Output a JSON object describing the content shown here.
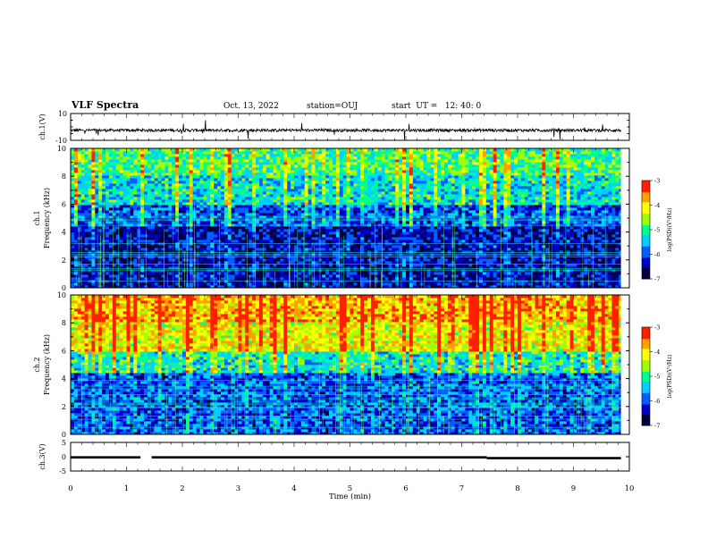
{
  "header": {
    "title": "VLF Spectra",
    "date": "Oct. 13, 2022",
    "station": "station=OUJ",
    "start": "start  UT =   12: 40: 0"
  },
  "chart_data": [
    {
      "type": "line",
      "panel": "ch1-waveform",
      "ylabel": "ch.1(V)",
      "ylim": [
        -10,
        10
      ],
      "yticks": [
        "10",
        "-10"
      ],
      "xlim": [
        0,
        10
      ],
      "baseline": -2.5
    },
    {
      "type": "heatmap",
      "panel": "ch1-spectrogram",
      "ylabel": "ch.1\nFrequency (kHz)",
      "ylim": [
        0,
        10
      ],
      "yticks": [
        "0",
        "2",
        "4",
        "6",
        "8",
        "10"
      ],
      "colorbar": {
        "label": "log(PSD)(V²/Hz)",
        "range": [
          -7,
          -3
        ],
        "ticks": [
          "-3",
          "-4",
          "-5",
          "-6",
          "-7"
        ]
      },
      "band_levels": [
        {
          "f_low": 0,
          "f_high": 4.5,
          "level": -6.4
        },
        {
          "f_low": 4.5,
          "f_high": 6,
          "level": -6.0
        },
        {
          "f_low": 6,
          "f_high": 8,
          "level": -5.3
        },
        {
          "f_low": 8,
          "f_high": 10,
          "level": -4.9
        }
      ]
    },
    {
      "type": "heatmap",
      "panel": "ch2-spectrogram",
      "ylabel": "ch.2\nFrequency (kHz)",
      "ylim": [
        0,
        10
      ],
      "yticks": [
        "0",
        "2",
        "4",
        "6",
        "8",
        "10"
      ],
      "colorbar": {
        "label": "log(PSD)(V²/Hz)",
        "range": [
          -7,
          -3
        ],
        "ticks": [
          "-3",
          "-4",
          "-5",
          "-6",
          "-7"
        ]
      },
      "band_levels": [
        {
          "f_low": 0,
          "f_high": 4.5,
          "level": -6.0
        },
        {
          "f_low": 4.5,
          "f_high": 6,
          "level": -5.2
        },
        {
          "f_low": 6,
          "f_high": 8,
          "level": -4.2
        },
        {
          "f_low": 8,
          "f_high": 10,
          "level": -3.8
        }
      ]
    },
    {
      "type": "line",
      "panel": "ch3-waveform",
      "ylabel": "ch.3(V)",
      "ylim": [
        -5,
        5
      ],
      "yticks": [
        "5",
        "0",
        "-5"
      ],
      "xlim": [
        0,
        10
      ],
      "segments": [
        {
          "x0": 0,
          "x1": 1.25,
          "y": -0.2
        },
        {
          "x0": 1.45,
          "x1": 7.45,
          "y": -0.2
        },
        {
          "x0": 7.45,
          "x1": 9.85,
          "y": -0.5
        }
      ]
    }
  ],
  "xaxis": {
    "label": "Time (min)",
    "ticks": [
      "0",
      "1",
      "2",
      "3",
      "4",
      "5",
      "6",
      "7",
      "8",
      "9",
      "10"
    ],
    "range": [
      0,
      10
    ]
  },
  "colormap": [
    "#000040",
    "#0000c8",
    "#0060ff",
    "#00d0ff",
    "#00ff90",
    "#a0ff00",
    "#ffff00",
    "#ffa000",
    "#ff2000",
    "#ffffff"
  ]
}
